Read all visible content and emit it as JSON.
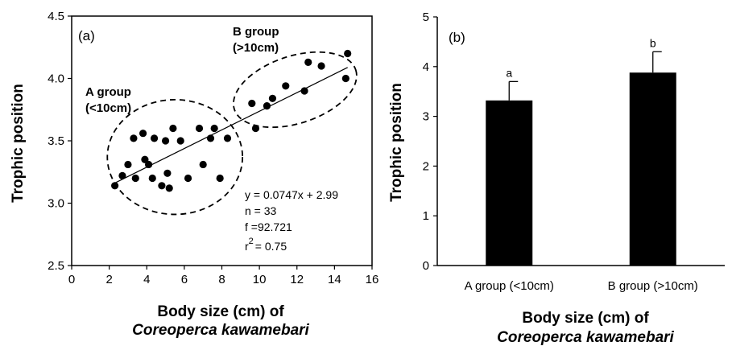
{
  "chart_data": [
    {
      "type": "scatter",
      "panel_label": "(a)",
      "xlabel": "Body size (cm) of",
      "xlabel_species": "Coreoperca kawamebari",
      "ylabel": "Trophic position",
      "xlim": [
        0,
        16
      ],
      "ylim": [
        2.5,
        4.5
      ],
      "x_ticks": [
        "0",
        "2",
        "4",
        "6",
        "8",
        "10",
        "12",
        "14",
        "16"
      ],
      "y_ticks": [
        "2.5",
        "3.0",
        "3.5",
        "4.0",
        "4.5"
      ],
      "points": [
        {
          "x": 2.3,
          "y": 3.14
        },
        {
          "x": 2.7,
          "y": 3.22
        },
        {
          "x": 3.0,
          "y": 3.31
        },
        {
          "x": 3.3,
          "y": 3.52
        },
        {
          "x": 3.4,
          "y": 3.2
        },
        {
          "x": 3.8,
          "y": 3.56
        },
        {
          "x": 3.9,
          "y": 3.35
        },
        {
          "x": 4.1,
          "y": 3.31
        },
        {
          "x": 4.3,
          "y": 3.2
        },
        {
          "x": 4.4,
          "y": 3.52
        },
        {
          "x": 4.8,
          "y": 3.14
        },
        {
          "x": 5.0,
          "y": 3.5
        },
        {
          "x": 5.1,
          "y": 3.24
        },
        {
          "x": 5.2,
          "y": 3.12
        },
        {
          "x": 5.4,
          "y": 3.6
        },
        {
          "x": 5.8,
          "y": 3.5
        },
        {
          "x": 6.2,
          "y": 3.2
        },
        {
          "x": 6.8,
          "y": 3.6
        },
        {
          "x": 7.0,
          "y": 3.31
        },
        {
          "x": 7.4,
          "y": 3.52
        },
        {
          "x": 7.6,
          "y": 3.6
        },
        {
          "x": 7.9,
          "y": 3.2
        },
        {
          "x": 8.3,
          "y": 3.52
        },
        {
          "x": 9.6,
          "y": 3.8
        },
        {
          "x": 9.8,
          "y": 3.6
        },
        {
          "x": 10.4,
          "y": 3.78
        },
        {
          "x": 10.7,
          "y": 3.84
        },
        {
          "x": 11.4,
          "y": 3.94
        },
        {
          "x": 12.4,
          "y": 3.9
        },
        {
          "x": 12.6,
          "y": 4.13
        },
        {
          "x": 13.3,
          "y": 4.1
        },
        {
          "x": 14.6,
          "y": 4.0
        },
        {
          "x": 14.7,
          "y": 4.2
        }
      ],
      "trendline": {
        "slope": 0.0747,
        "intercept": 2.99,
        "x_range": [
          2.3,
          14.7
        ]
      },
      "groups": [
        {
          "label_line1": "A group",
          "label_line2": "(<10cm)",
          "ellipse": {
            "cx": 5.5,
            "cy": 3.37,
            "rx": 3.6,
            "ry": 0.46
          }
        },
        {
          "label_line1": "B group",
          "label_line2": "(>10cm)",
          "ellipse": {
            "cx": 11.9,
            "cy": 3.91,
            "rx": 3.4,
            "ry": 0.27,
            "angle_deg": -18
          }
        }
      ],
      "stats": {
        "equation": "y = 0.0747x + 2.99",
        "n": "n = 33",
        "f": "f  =92.721",
        "r2_prefix": "r",
        "r2_sup": "2",
        "r2_suffix": "= 0.75"
      }
    },
    {
      "type": "bar",
      "panel_label": "(b)",
      "xlabel": "Body size (cm) of",
      "xlabel_species": "Coreoperca kawamebari",
      "ylabel": "Trophic position",
      "ylim": [
        0,
        5
      ],
      "y_ticks": [
        "0",
        "1",
        "2",
        "3",
        "4",
        "5"
      ],
      "categories": [
        "A group (<10cm)",
        "B group (>10cm)"
      ],
      "values": [
        3.32,
        3.88
      ],
      "errors": [
        0.38,
        0.42
      ],
      "significance": [
        "a",
        "b"
      ],
      "bar_color": "#000000"
    }
  ]
}
